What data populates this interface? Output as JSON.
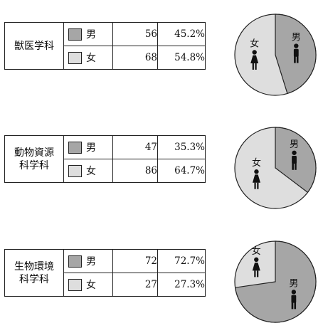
{
  "colors": {
    "male": "#a6a6a6",
    "female": "#dedede",
    "border": "#222222"
  },
  "icons": {
    "male": "man-figure-icon",
    "female": "woman-figure-icon"
  },
  "chart_data": [
    {
      "type": "pie",
      "department": "獣医学科",
      "rows": [
        {
          "gender": "男",
          "count": "56",
          "percent": "45.2%"
        },
        {
          "gender": "女",
          "count": "68",
          "percent": "54.8%"
        }
      ],
      "values": [
        45.2,
        54.8
      ]
    },
    {
      "type": "pie",
      "department": "動物資源科学科",
      "rows": [
        {
          "gender": "男",
          "count": "47",
          "percent": "35.3%"
        },
        {
          "gender": "女",
          "count": "86",
          "percent": "64.7%"
        }
      ],
      "values": [
        35.3,
        64.7
      ]
    },
    {
      "type": "pie",
      "department": "生物環境科学科",
      "rows": [
        {
          "gender": "男",
          "count": "72",
          "percent": "72.7%"
        },
        {
          "gender": "女",
          "count": "27",
          "percent": "27.3%"
        }
      ],
      "values": [
        72.7,
        27.3
      ]
    }
  ]
}
